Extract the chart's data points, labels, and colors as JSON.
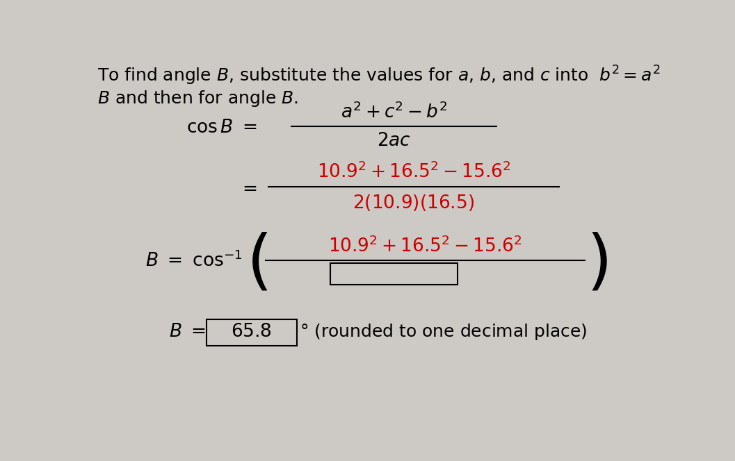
{
  "bg_color": "#cdc9c4",
  "text_color": "#000000",
  "red_color": "#cc0000",
  "fig_width": 10.57,
  "fig_height": 6.64
}
